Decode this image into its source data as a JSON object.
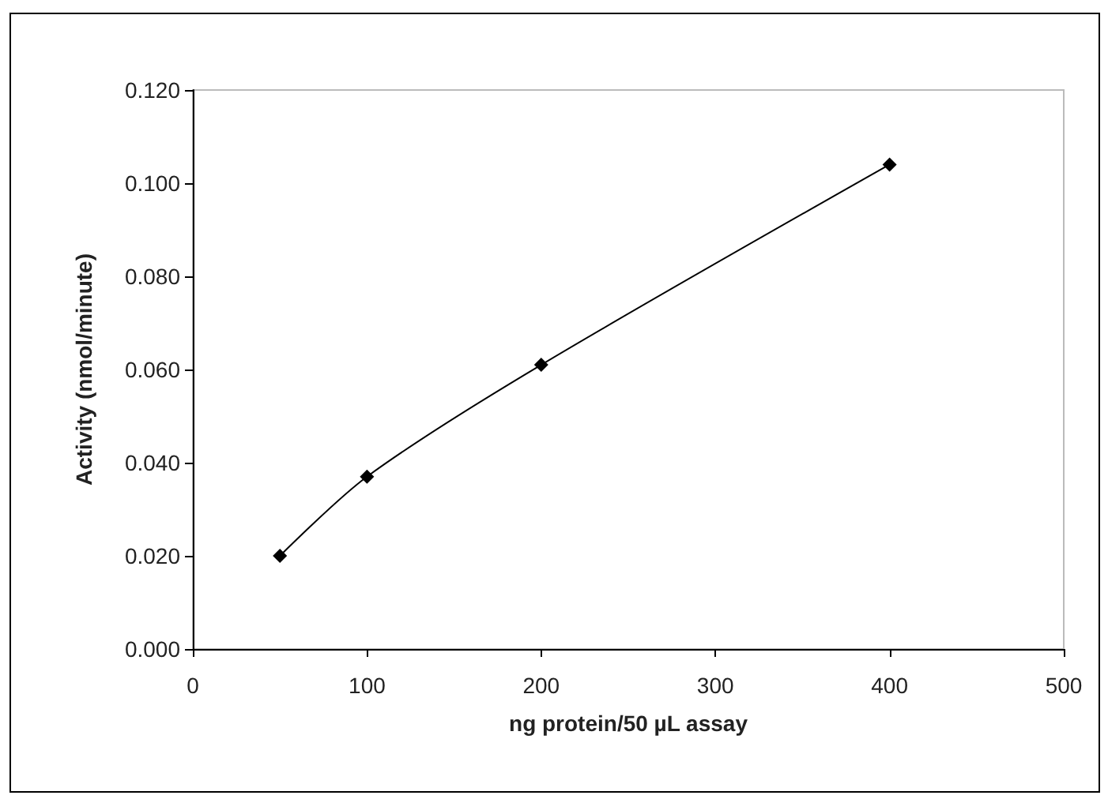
{
  "chart_data": {
    "type": "line",
    "xlabel": "ng protein/50 µL assay",
    "ylabel": "Activity (nmol/minute)",
    "x": [
      50,
      100,
      200,
      400
    ],
    "series": [
      {
        "color": "#000000",
        "values": [
          0.02,
          0.037,
          0.061,
          0.104
        ]
      }
    ],
    "xlim": [
      0,
      500
    ],
    "xticks": [
      0,
      100,
      200,
      300,
      400,
      500
    ],
    "ylim": [
      0,
      0.12
    ],
    "yticks": [
      {
        "value": 0,
        "label": "0.000"
      },
      {
        "value": 0.02,
        "label": "0.020"
      },
      {
        "value": 0.04,
        "label": "0.040"
      },
      {
        "value": 0.06,
        "label": "0.060"
      },
      {
        "value": 0.08,
        "label": "0.080"
      },
      {
        "value": 0.1,
        "label": "0.100"
      },
      {
        "value": 0.12,
        "label": "0.120"
      }
    ],
    "grid": false,
    "marker": "diamond",
    "line_style": "solid"
  }
}
